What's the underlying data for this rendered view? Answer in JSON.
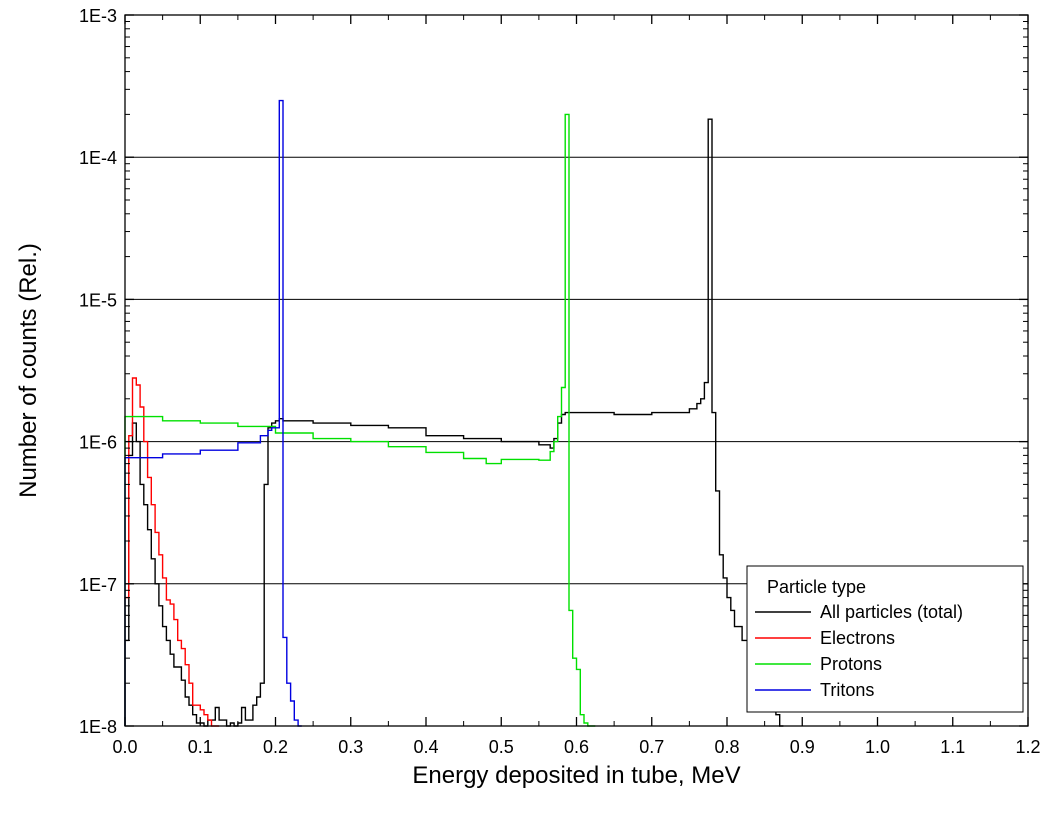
{
  "chart_data": {
    "type": "line",
    "title": "",
    "xlabel": "Energy deposited in tube, MeV",
    "ylabel": "Number of counts (Rel.)",
    "xlim": [
      0.0,
      1.2
    ],
    "ylim": [
      1e-08,
      0.001
    ],
    "yscale": "log",
    "x_ticks": [
      0.0,
      0.1,
      0.2,
      0.3,
      0.4,
      0.5,
      0.6,
      0.7,
      0.8,
      0.9,
      1.0,
      1.1,
      1.2
    ],
    "x_tick_labels": [
      "0.0",
      "0.1",
      "0.2",
      "0.3",
      "0.4",
      "0.5",
      "0.6",
      "0.7",
      "0.8",
      "0.9",
      "1.0",
      "1.1",
      "1.2"
    ],
    "y_ticks": [
      1e-08,
      1e-07,
      1e-06,
      1e-05,
      0.0001,
      0.001
    ],
    "y_tick_labels": [
      "1E-8",
      "1E-7",
      "1E-6",
      "1E-5",
      "1E-4",
      "1E-3"
    ],
    "grid": "horizontal major",
    "legend_title": "Particle type",
    "legend_position": "bottom-right",
    "series": [
      {
        "name": "All particles (total)",
        "color": "#000000",
        "x": [
          0.0,
          0.005,
          0.01,
          0.015,
          0.02,
          0.025,
          0.03,
          0.035,
          0.04,
          0.045,
          0.05,
          0.055,
          0.06,
          0.065,
          0.07,
          0.075,
          0.08,
          0.085,
          0.09,
          0.095,
          0.1,
          0.105,
          0.11,
          0.115,
          0.12,
          0.125,
          0.13,
          0.135,
          0.14,
          0.145,
          0.15,
          0.155,
          0.16,
          0.165,
          0.17,
          0.175,
          0.18,
          0.185,
          0.19,
          0.195,
          0.2,
          0.205,
          0.21,
          0.25,
          0.3,
          0.35,
          0.4,
          0.45,
          0.5,
          0.55,
          0.565,
          0.57,
          0.575,
          0.58,
          0.585,
          0.6,
          0.65,
          0.7,
          0.75,
          0.76,
          0.765,
          0.77,
          0.775,
          0.78,
          0.785,
          0.79,
          0.795,
          0.8,
          0.805,
          0.81,
          0.815,
          0.82,
          0.83,
          0.84,
          0.85,
          0.86,
          0.865,
          0.87
        ],
        "y": [
          4e-08,
          8e-07,
          1.35e-06,
          1e-06,
          5e-07,
          3.6e-07,
          2.4e-07,
          1.5e-07,
          1e-07,
          7e-08,
          5e-08,
          4e-08,
          3.2e-08,
          2.6e-08,
          2.6e-08,
          2.1e-08,
          1.6e-08,
          1.4e-08,
          1.2e-08,
          1.05e-08,
          1.05e-08,
          1e-08,
          1.1e-08,
          1.1e-08,
          1.35e-08,
          1.1e-08,
          1.1e-08,
          1e-08,
          1.05e-08,
          1e-08,
          1.05e-08,
          1.35e-08,
          1.1e-08,
          1.1e-08,
          1.4e-08,
          1.6e-08,
          2e-08,
          5e-07,
          1.25e-06,
          1.35e-06,
          1.4e-06,
          1.45e-06,
          1.4e-06,
          1.35e-06,
          1.3e-06,
          1.25e-06,
          1.1e-06,
          1.05e-06,
          1e-06,
          9.5e-07,
          9e-07,
          1.05e-06,
          1.35e-06,
          1.55e-06,
          1.6e-06,
          1.6e-06,
          1.55e-06,
          1.6e-06,
          1.7e-06,
          1.85e-06,
          2e-06,
          2.6e-06,
          0.000185,
          1.6e-06,
          4.5e-07,
          1.6e-07,
          1.1e-07,
          8e-08,
          6.5e-08,
          5e-08,
          5e-08,
          4e-08,
          3e-08,
          2.5e-08,
          2e-08,
          1.5e-08,
          1.2e-08,
          1e-08
        ]
      },
      {
        "name": "Electrons",
        "color": "#ff0000",
        "x": [
          0.0,
          0.005,
          0.01,
          0.015,
          0.02,
          0.025,
          0.03,
          0.035,
          0.04,
          0.045,
          0.05,
          0.055,
          0.06,
          0.065,
          0.07,
          0.075,
          0.08,
          0.085,
          0.09,
          0.095,
          0.1,
          0.105,
          0.11,
          0.115,
          0.12
        ],
        "y": [
          8e-08,
          1.1e-06,
          2.8e-06,
          2.5e-06,
          1.75e-06,
          1e-06,
          5.6e-07,
          3.6e-07,
          2.3e-07,
          1.6e-07,
          1.1e-07,
          7.7e-08,
          7.2e-08,
          5.6e-08,
          4e-08,
          3.5e-08,
          2.7e-08,
          2e-08,
          1.4e-08,
          1.4e-08,
          1.3e-08,
          1.2e-08,
          1.1e-08,
          1e-08,
          1e-08
        ]
      },
      {
        "name": "Protons",
        "color": "#00e000",
        "x": [
          0.0,
          0.05,
          0.1,
          0.15,
          0.2,
          0.25,
          0.3,
          0.35,
          0.4,
          0.45,
          0.48,
          0.5,
          0.55,
          0.565,
          0.57,
          0.575,
          0.58,
          0.585,
          0.59,
          0.595,
          0.6,
          0.605,
          0.61,
          0.615,
          0.62
        ],
        "y": [
          1.5e-06,
          1.4e-06,
          1.35e-06,
          1.28e-06,
          1.15e-06,
          1.05e-06,
          1e-06,
          9.2e-07,
          8.4e-07,
          7.6e-07,
          7e-07,
          7.5e-07,
          7.4e-07,
          8.5e-07,
          1e-06,
          1.5e-06,
          2.4e-06,
          0.0002,
          6.5e-08,
          3e-08,
          2.5e-08,
          1.2e-08,
          1.05e-08,
          1e-08,
          1e-08
        ]
      },
      {
        "name": "Tritons",
        "color": "#0000e0",
        "x": [
          0.0,
          0.05,
          0.1,
          0.15,
          0.18,
          0.19,
          0.195,
          0.2,
          0.205,
          0.21,
          0.215,
          0.22,
          0.225,
          0.23
        ],
        "y": [
          7.7e-07,
          8.2e-07,
          8.7e-07,
          9.8e-07,
          1.1e-06,
          1.2e-06,
          1.25e-06,
          1.25e-06,
          0.00025,
          4.2e-08,
          2e-08,
          1.5e-08,
          1.1e-08,
          1e-08
        ]
      }
    ]
  }
}
